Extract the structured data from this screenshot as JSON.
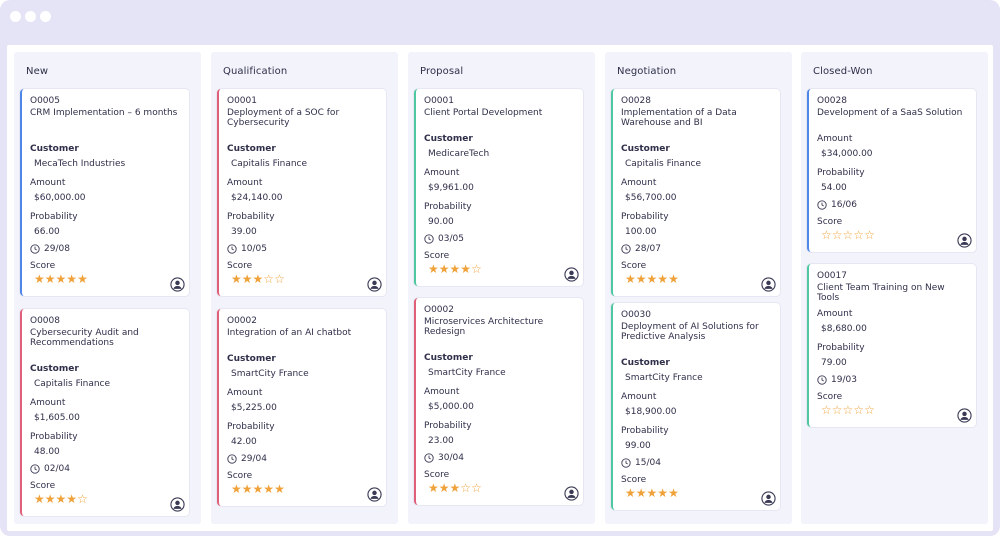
{
  "window": {
    "title": ""
  },
  "colors": {
    "blue": "#4f87e8",
    "red": "#e0607a",
    "green": "#4fc8a2",
    "star": "#f0a23a"
  },
  "icons": {
    "clock": "clock-icon",
    "avatar": "user-avatar-icon",
    "star": "star-icon"
  },
  "labels": {
    "customer": "Customer",
    "amount": "Amount",
    "probability": "Probability",
    "score": "Score"
  },
  "columns": [
    {
      "title": "New",
      "cards": [
        {
          "id": "O0005",
          "title": "CRM Implementation – 6 months",
          "title_lines": 2,
          "customer": "MecaTech Industries",
          "amount": "$60,000.00",
          "probability": "66.00",
          "date": "29/08",
          "score": 5,
          "color": "blue"
        },
        {
          "id": "O0008",
          "title": "Cybersecurity Audit and Recommendations",
          "title_lines": 2,
          "customer": "Capitalis Finance",
          "amount": "$1,605.00",
          "probability": "48.00",
          "date": "02/04",
          "score": 4,
          "color": "red"
        }
      ]
    },
    {
      "title": "Qualification",
      "cards": [
        {
          "id": "O0001",
          "title": "Deployment of a SOC for Cybersecurity",
          "title_lines": 2,
          "customer": "Capitalis Finance",
          "amount": "$24,140.00",
          "probability": "39.00",
          "date": "10/05",
          "score": 3,
          "color": "red"
        },
        {
          "id": "O0002",
          "title": "Integration of an AI chatbot",
          "title_lines": 1,
          "customer": "SmartCity France",
          "amount": "$5,225.00",
          "probability": "42.00",
          "date": "29/04",
          "score": 5,
          "color": "red"
        }
      ]
    },
    {
      "title": "Proposal",
      "cards": [
        {
          "id": "O0001",
          "title": "Client Portal Development",
          "title_lines": 1,
          "customer": "MedicareTech",
          "amount": "$9,961.00",
          "probability": "90.00",
          "date": "03/05",
          "score": 4,
          "color": "green"
        },
        {
          "id": "O0002",
          "title": "Microservices Architecture Redesign",
          "title_lines": 2,
          "customer": "SmartCity France",
          "amount": "$5,000.00",
          "probability": "23.00",
          "date": "30/04",
          "score": 3,
          "color": "red"
        }
      ]
    },
    {
      "title": "Negotiation",
      "cards": [
        {
          "id": "O0028",
          "title": "Implementation of a Data Warehouse and BI",
          "title_lines": 2,
          "customer": "Capitalis Finance",
          "amount": "$56,700.00",
          "probability": "100.00",
          "date": "28/07",
          "score": 5,
          "color": "green"
        },
        {
          "id": "O0030",
          "title": "Deployment of AI Solutions for Predictive Analysis",
          "title_lines": 2,
          "customer": "SmartCity France",
          "amount": "$18,900.00",
          "probability": "99.00",
          "date": "15/04",
          "score": 5,
          "color": "green"
        }
      ]
    },
    {
      "title": "Closed-Won",
      "cards": [
        {
          "id": "O0028",
          "title": "Development of a SaaS Solution",
          "title_lines": 1,
          "customer": "",
          "amount": "$34,000.00",
          "probability": "54.00",
          "date": "16/06",
          "score": 0,
          "color": "blue"
        },
        {
          "id": "O0017",
          "title": "Client Team Training on New Tools",
          "title_lines": 1,
          "customer": "",
          "amount": "$8,680.00",
          "probability": "79.00",
          "date": "19/03",
          "score": 0,
          "color": "green"
        }
      ]
    }
  ]
}
